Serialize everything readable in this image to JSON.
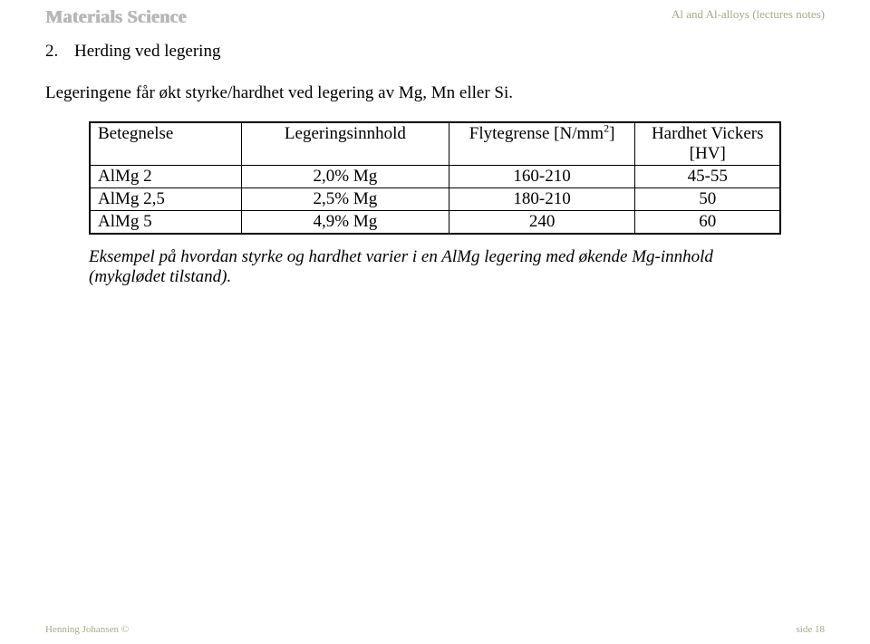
{
  "header": {
    "logo_text": "Materials Science",
    "right_text": "Al and Al-alloys (lectures notes)"
  },
  "section": {
    "number": "2.",
    "title": "Herding ved legering"
  },
  "intro": "Legeringene får økt styrke/hardhet ved legering av Mg, Mn eller Si.",
  "table": {
    "head": {
      "c0": "Betegnelse",
      "c1": "Legeringsinnhold",
      "c2_prefix": "Flytegrense [N/mm",
      "c2_sup": "2",
      "c2_suffix": "]",
      "c3_line1": "Hardhet Vickers",
      "c3_line2": "[HV]"
    },
    "rows": [
      {
        "c0": "AlMg 2",
        "c1": "2,0% Mg",
        "c2": "160-210",
        "c3": "45-55"
      },
      {
        "c0": "AlMg 2,5",
        "c1": "2,5% Mg",
        "c2": "180-210",
        "c3": "50"
      },
      {
        "c0": "AlMg 5",
        "c1": "4,9% Mg",
        "c2": "240",
        "c3": "60"
      }
    ]
  },
  "caption": "Eksempel på hvordan styrke og hardhet varier i en AlMg legering med økende Mg-innhold (mykglødet tilstand).",
  "footer": {
    "left": "Henning Johansen ©",
    "right": "side 18"
  },
  "colors": {
    "header_text": "#a8a887",
    "logo_gray": "#b7b7b7",
    "body_text": "#000000",
    "background": "#ffffff"
  }
}
